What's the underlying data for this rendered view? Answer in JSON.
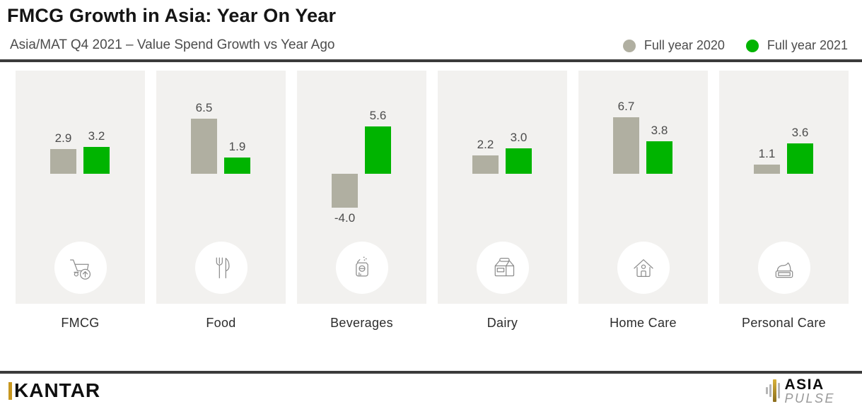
{
  "chart_data": {
    "type": "bar",
    "title": "FMCG Growth in Asia: Year On Year",
    "subtitle": "Asia/MAT Q4 2021 – Value Spend Growth vs Year Ago",
    "categories": [
      "FMCG",
      "Food",
      "Beverages",
      "Dairy",
      "Home Care",
      "Personal Care"
    ],
    "category_icons": [
      "cart-arrow-up-icon",
      "fork-knife-icon",
      "soda-can-icon",
      "milk-carton-icon",
      "house-icon",
      "cream-jar-icon"
    ],
    "series": [
      {
        "name": "Full year 2020",
        "color": "#b0afa1",
        "values": [
          2.9,
          6.5,
          -4.0,
          2.2,
          6.7,
          1.1
        ],
        "labels": [
          "2.9",
          "6.5",
          "-4.0",
          "2.2",
          "6.7",
          "1.1"
        ]
      },
      {
        "name": "Full year 2021",
        "color": "#00b400",
        "values": [
          3.2,
          1.9,
          5.6,
          3.0,
          3.8,
          3.6
        ],
        "labels": [
          "3.2",
          "1.9",
          "5.6",
          "3.0",
          "3.8",
          "3.6"
        ]
      }
    ],
    "xlabel": "",
    "ylabel": "",
    "ylim": [
      -5,
      8
    ],
    "grid": false,
    "legend_position": "top-right",
    "value_labels_shown": true
  },
  "footer": {
    "kantar_text": "KANTAR",
    "asiapulse_line1": "ASIA",
    "asiapulse_line2": "PULSE",
    "brand_gold": "#c7971f"
  }
}
